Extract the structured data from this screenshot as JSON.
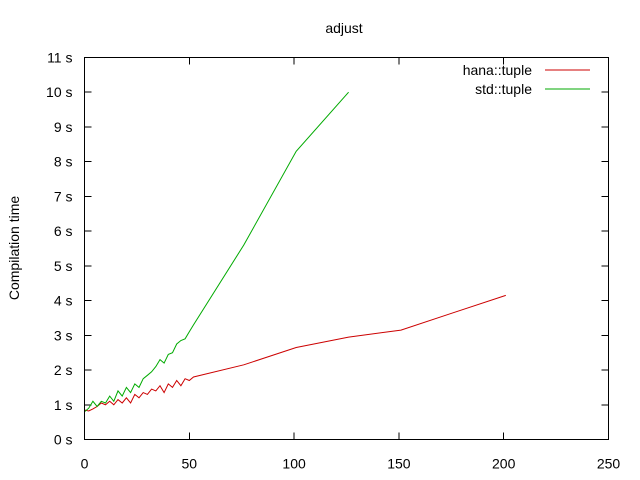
{
  "chart_data": {
    "type": "line",
    "title": "adjust",
    "xlabel": "",
    "ylabel": "Compilation time",
    "xlim": [
      0,
      250
    ],
    "ylim": [
      0,
      11
    ],
    "x_ticks": [
      0,
      50,
      100,
      150,
      200,
      250
    ],
    "x_tick_labels": [
      "0",
      "50",
      "100",
      "150",
      "200",
      "250"
    ],
    "y_ticks": [
      0,
      1,
      2,
      3,
      4,
      5,
      6,
      7,
      8,
      9,
      10,
      11
    ],
    "y_tick_labels": [
      "0 s",
      "1 s",
      "2 s",
      "3 s",
      "4 s",
      "5 s",
      "6 s",
      "7 s",
      "8 s",
      "9 s",
      "10 s",
      "11 s"
    ],
    "grid": false,
    "legend_position": "top-right",
    "series": [
      {
        "name": "hana::tuple",
        "color": "#cc0000",
        "points": [
          [
            0,
            0.85
          ],
          [
            2,
            0.82
          ],
          [
            4,
            0.88
          ],
          [
            6,
            0.95
          ],
          [
            8,
            1.05
          ],
          [
            10,
            1.0
          ],
          [
            12,
            1.1
          ],
          [
            14,
            1.0
          ],
          [
            16,
            1.15
          ],
          [
            18,
            1.05
          ],
          [
            20,
            1.2
          ],
          [
            22,
            1.05
          ],
          [
            24,
            1.3
          ],
          [
            26,
            1.2
          ],
          [
            28,
            1.35
          ],
          [
            30,
            1.3
          ],
          [
            32,
            1.45
          ],
          [
            34,
            1.4
          ],
          [
            36,
            1.55
          ],
          [
            38,
            1.35
          ],
          [
            40,
            1.6
          ],
          [
            42,
            1.5
          ],
          [
            44,
            1.7
          ],
          [
            46,
            1.55
          ],
          [
            48,
            1.75
          ],
          [
            50,
            1.7
          ],
          [
            52,
            1.8
          ],
          [
            76,
            2.15
          ],
          [
            101,
            2.65
          ],
          [
            126,
            2.95
          ],
          [
            151,
            3.15
          ],
          [
            176,
            3.65
          ],
          [
            201,
            4.15
          ]
        ]
      },
      {
        "name": "std::tuple",
        "color": "#00aa00",
        "points": [
          [
            0,
            0.8
          ],
          [
            2,
            0.9
          ],
          [
            4,
            1.1
          ],
          [
            6,
            0.95
          ],
          [
            8,
            1.1
          ],
          [
            10,
            1.05
          ],
          [
            12,
            1.25
          ],
          [
            14,
            1.1
          ],
          [
            16,
            1.4
          ],
          [
            18,
            1.25
          ],
          [
            20,
            1.5
          ],
          [
            22,
            1.35
          ],
          [
            24,
            1.6
          ],
          [
            26,
            1.5
          ],
          [
            28,
            1.75
          ],
          [
            30,
            1.85
          ],
          [
            32,
            1.95
          ],
          [
            34,
            2.1
          ],
          [
            36,
            2.3
          ],
          [
            38,
            2.2
          ],
          [
            40,
            2.45
          ],
          [
            42,
            2.5
          ],
          [
            44,
            2.75
          ],
          [
            46,
            2.85
          ],
          [
            48,
            2.9
          ],
          [
            50,
            3.1
          ],
          [
            52,
            3.3
          ],
          [
            76,
            5.6
          ],
          [
            101,
            8.3
          ],
          [
            126,
            10.0
          ]
        ]
      }
    ]
  }
}
